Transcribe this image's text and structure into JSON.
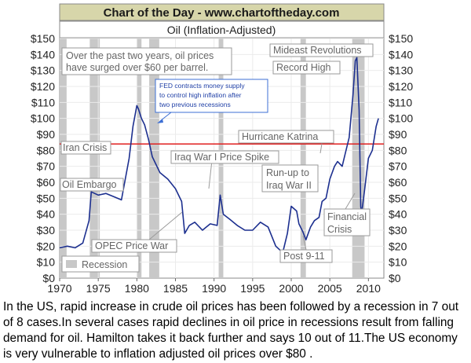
{
  "chart_data": {
    "type": "line",
    "title": "Chart of the Day - www.chartoftheday.com",
    "subtitle": "Oil (Inflation-Adjusted)",
    "xlabel": "",
    "ylabel": "",
    "xlim": [
      1970,
      2012
    ],
    "ylim": [
      0,
      150
    ],
    "x_ticks": [
      1970,
      1975,
      1980,
      1985,
      1990,
      1995,
      2000,
      2005,
      2010
    ],
    "y_ticks": [
      0,
      10,
      20,
      30,
      40,
      50,
      60,
      70,
      80,
      90,
      100,
      110,
      120,
      130,
      140,
      150
    ],
    "y_tick_labels": [
      "$0",
      "$10",
      "$20",
      "$30",
      "$40",
      "$50",
      "$60",
      "$70",
      "$80",
      "$90",
      "$100",
      "$110",
      "$120",
      "$130",
      "$140",
      "$150"
    ],
    "reference_line": {
      "value": 84,
      "color": "#e02020"
    },
    "recessions": [
      [
        1970.0,
        1970.9
      ],
      [
        1973.9,
        1975.2
      ],
      [
        1980.0,
        1980.6
      ],
      [
        1981.6,
        1982.9
      ],
      [
        1990.6,
        1991.2
      ],
      [
        2001.2,
        2001.9
      ],
      [
        2007.9,
        2009.5
      ]
    ],
    "legend": {
      "label": "Recession",
      "position": "bottom-left"
    },
    "series": [
      {
        "name": "Oil (Inflation-Adjusted)",
        "color": "#1c2f8f",
        "x": [
          1970,
          1971,
          1972,
          1973,
          1973.8,
          1974.1,
          1975,
          1976,
          1977,
          1978,
          1979,
          1979.5,
          1980,
          1980.2,
          1980.6,
          1981,
          1981.5,
          1982,
          1983,
          1984,
          1985,
          1985.8,
          1986.2,
          1986.8,
          1987.5,
          1988.5,
          1989.5,
          1990.4,
          1990.8,
          1991.2,
          1992,
          1993,
          1994,
          1995,
          1996,
          1997,
          1998,
          1998.9,
          1999.5,
          2000,
          2000.7,
          2001,
          2001.5,
          2001.9,
          2002.5,
          2003,
          2003.6,
          2004,
          2004.5,
          2005,
          2005.6,
          2006,
          2006.6,
          2007,
          2007.5,
          2008,
          2008.3,
          2008.5,
          2008.8,
          2009,
          2009.1,
          2009.5,
          2010,
          2010.5,
          2011,
          2011.3
        ],
        "y": [
          19,
          20,
          19,
          22,
          36,
          54,
          52,
          53,
          51,
          49,
          75,
          95,
          108,
          106,
          100,
          96,
          87,
          76,
          66,
          62,
          56,
          48,
          28,
          33,
          35,
          30,
          34,
          33,
          52,
          40,
          37,
          33,
          30,
          30,
          35,
          32,
          20,
          16,
          28,
          45,
          42,
          34,
          29,
          24,
          32,
          36,
          38,
          48,
          50,
          62,
          70,
          73,
          70,
          78,
          88,
          115,
          136,
          138,
          105,
          45,
          40,
          55,
          75,
          80,
          95,
          100
        ]
      }
    ],
    "annotations": [
      {
        "text": "Over the past two years, oil prices",
        "line2": "have surged over $60 per barrel."
      },
      {
        "text": "FED contracts money supply",
        "line2": "to control high inflation after",
        "line3": "two previous recessions"
      },
      {
        "text": "Mideast Revolutions"
      },
      {
        "text": "Record High"
      },
      {
        "text": "Hurricane Katrina"
      },
      {
        "text": "Iran Crisis"
      },
      {
        "text": "Iraq War I Price Spike"
      },
      {
        "text": "Run-up to",
        "line2": "Iraq War II"
      },
      {
        "text": "Oil Embargo"
      },
      {
        "text": "Financial",
        "line2": "Crisis"
      },
      {
        "text": "OPEC Price War"
      },
      {
        "text": "Post 9-11"
      }
    ]
  },
  "caption": {
    "text": "In the US, rapid increase in crude oil prices has been followed by a recession in 7 out of 8 cases.In several cases rapid declines in oil price in recessions result from falling demand for oil. Hamilton takes it back further and says 10 out of 11.The US economy is very vulnerable to inflation adjusted oil prices over $80 ."
  }
}
